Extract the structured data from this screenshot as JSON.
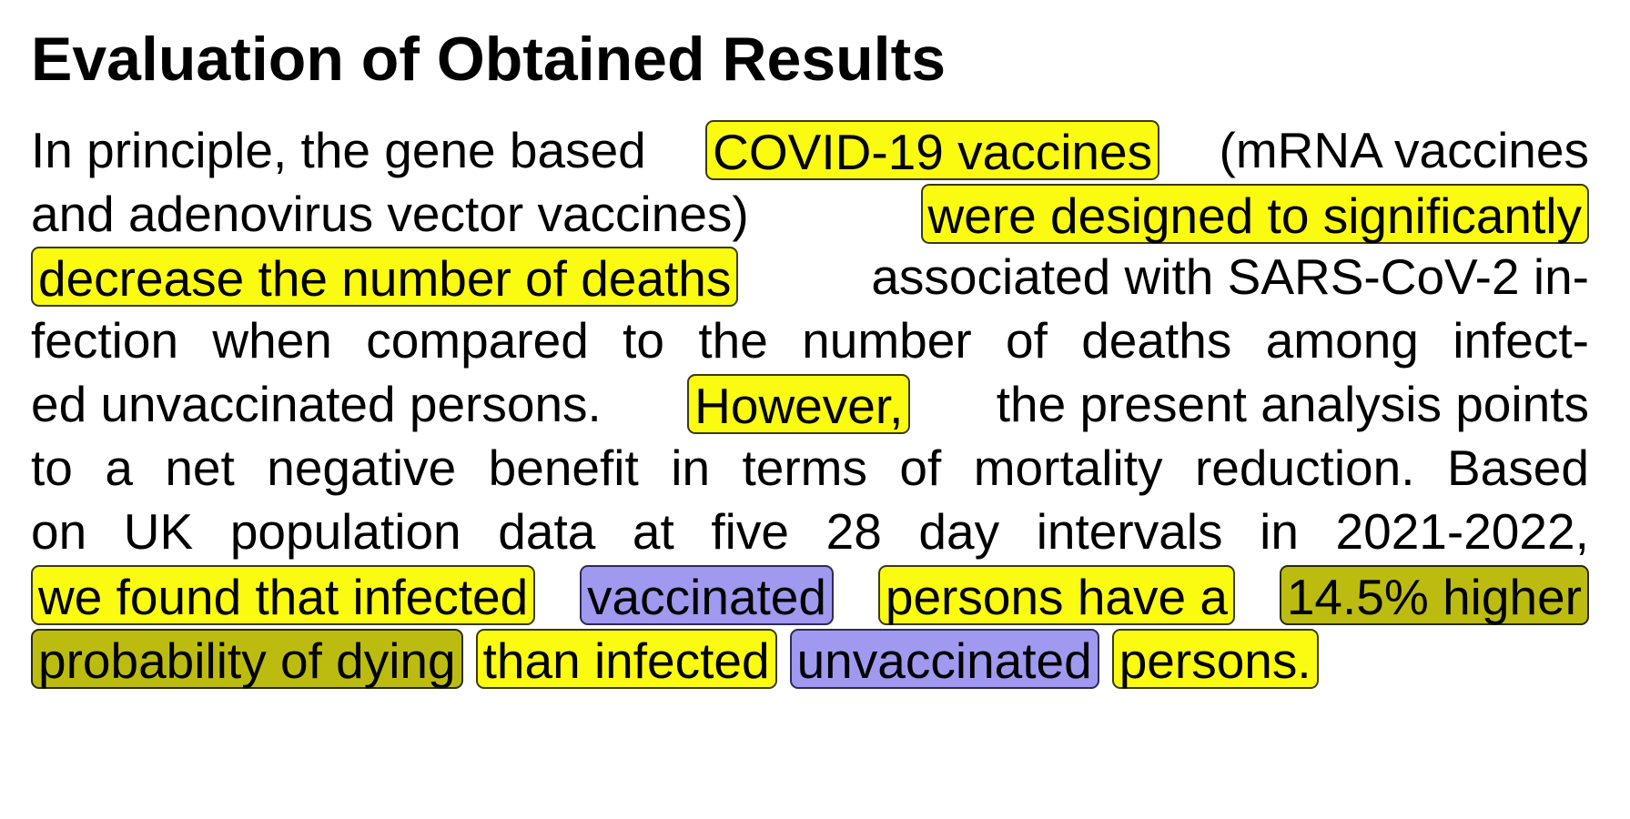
{
  "title": "Evaluation of Obtained Results",
  "colors": {
    "highlight_yellow": "#fbfb12",
    "highlight_purple": "#a099f0",
    "highlight_olive": "#bcbc10",
    "text": "#000000",
    "background": "#ffffff"
  },
  "lines": [
    {
      "segments": [
        {
          "text": "In principle, the gene based",
          "highlight": "none"
        },
        {
          "text": "COVID-19 vaccines",
          "highlight": "yellow"
        },
        {
          "text": "(mRNA vaccines",
          "highlight": "none"
        }
      ]
    },
    {
      "segments": [
        {
          "text": "and adenovirus vector vaccines)",
          "highlight": "none"
        },
        {
          "text": "were designed to significantly",
          "highlight": "yellow"
        }
      ]
    },
    {
      "segments": [
        {
          "text": "decrease the number of deaths",
          "highlight": "yellow"
        },
        {
          "text": "associated with SARS-CoV-2 in-",
          "highlight": "none"
        }
      ]
    },
    {
      "segments": [
        {
          "text": "fection when compared to the number of deaths among infect-",
          "highlight": "none"
        }
      ]
    },
    {
      "segments": [
        {
          "text": "ed unvaccinated persons.",
          "highlight": "none"
        },
        {
          "text": "However,",
          "highlight": "yellow"
        },
        {
          "text": "the present analysis points",
          "highlight": "none"
        }
      ]
    },
    {
      "segments": [
        {
          "text": "to a net negative benefit in terms of mortality reduction. Based",
          "highlight": "none"
        }
      ]
    },
    {
      "segments": [
        {
          "text": "on UK population data at five 28 day intervals in 2021-2022,",
          "highlight": "none"
        }
      ]
    },
    {
      "segments": [
        {
          "text": "we found that infected",
          "highlight": "yellow"
        },
        {
          "text": "vaccinated",
          "highlight": "purple"
        },
        {
          "text": "persons have a",
          "highlight": "yellow"
        },
        {
          "text": "14.5% higher",
          "highlight": "olive"
        }
      ]
    },
    {
      "segments": [
        {
          "text": "probability of dying",
          "highlight": "olive"
        },
        {
          "text": "than infected",
          "highlight": "yellow"
        },
        {
          "text": "unvaccinated",
          "highlight": "purple"
        },
        {
          "text": "persons.",
          "highlight": "yellow"
        }
      ]
    }
  ]
}
